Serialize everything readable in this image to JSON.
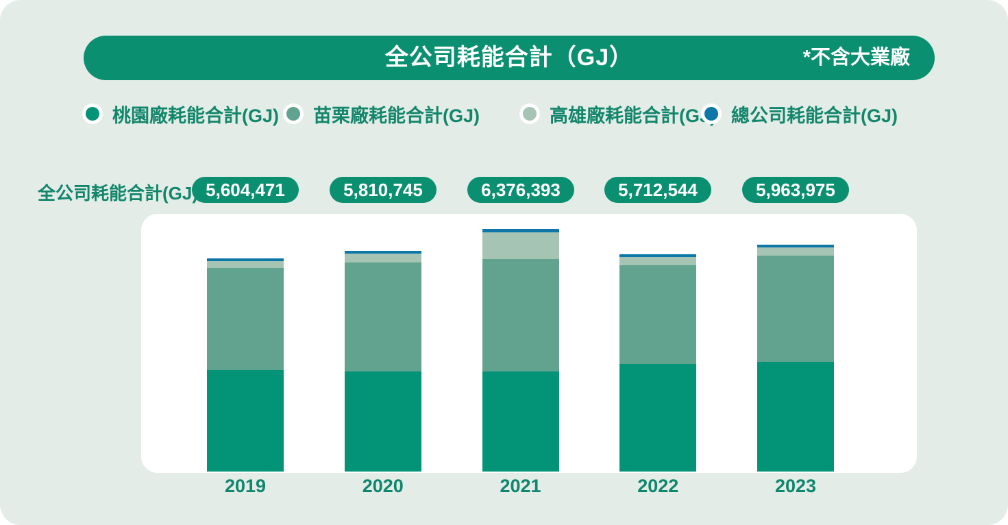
{
  "title": {
    "text": "全公司耗能合計（GJ）",
    "note": "*不含大業廠"
  },
  "legend": [
    {
      "key": "taoyuan",
      "label": "桃園廠耗能合計(GJ)",
      "color": "#039376"
    },
    {
      "key": "miaoli",
      "label": "苗栗廠耗能合計(GJ)",
      "color": "#61a38e"
    },
    {
      "key": "kaohsiung",
      "label": "高雄廠耗能合計(GJ)",
      "color": "#a6c4b3"
    },
    {
      "key": "headquarters",
      "label": "總公司耗能合計(GJ)",
      "color": "#0d77a8"
    }
  ],
  "totals_row": {
    "label": "全公司耗能合計(GJ)",
    "values": [
      "5,604,471",
      "5,810,745",
      "6,376,393",
      "5,712,544",
      "5,963,975"
    ]
  },
  "chart_data": {
    "type": "bar",
    "stacked": true,
    "title": "全公司耗能合計（GJ）",
    "annotation": "*不含大業廠",
    "categories": [
      "2019",
      "2020",
      "2021",
      "2022",
      "2023"
    ],
    "totals": [
      5604471,
      5810745,
      6376393,
      5712544,
      5963975
    ],
    "series": [
      {
        "key": "taoyuan",
        "name": "桃園廠耗能合計(GJ)",
        "color": "#039376",
        "values": [
          2665000,
          2630000,
          2630000,
          2830000,
          2880000
        ]
      },
      {
        "key": "miaoli",
        "name": "苗栗廠耗能合計(GJ)",
        "color": "#61a38e",
        "values": [
          2680000,
          2866000,
          2950000,
          2600000,
          2800000
        ]
      },
      {
        "key": "kaohsiung",
        "name": "高雄廠耗能合計(GJ)",
        "color": "#a6c4b3",
        "values": [
          180000,
          240000,
          706000,
          210000,
          208000
        ]
      },
      {
        "key": "headquarters",
        "name": "總公司耗能合計(GJ)",
        "color": "#0d77a8",
        "values": [
          79471,
          74745,
          90393,
          72544,
          75975
        ]
      }
    ],
    "segment_values_estimated_from_pixels": true,
    "legend_position": "top",
    "grid": false,
    "y_axis_visible": false
  },
  "colors": {
    "page_background": "#e3ece7",
    "card_background": "#ffffff",
    "brand_green": "#0a9070",
    "text_green": "#12866b"
  }
}
